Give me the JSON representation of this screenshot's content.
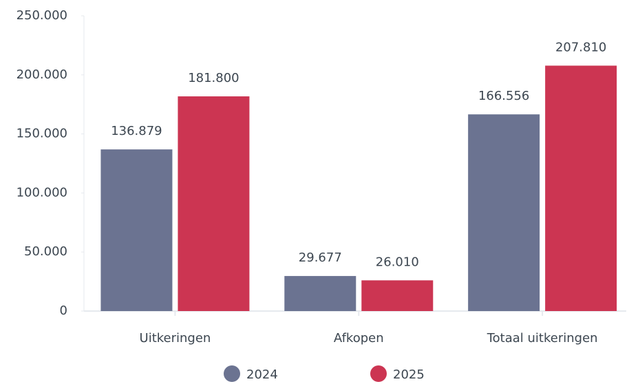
{
  "chart_data": {
    "type": "bar",
    "categories": [
      "Uitkeringen",
      "Afkopen",
      "Totaal uitkeringen"
    ],
    "series": [
      {
        "name": "2024",
        "color": "#6b7391",
        "values": [
          136879,
          29677,
          166556
        ],
        "value_labels": [
          "136.879",
          "29.677",
          "166.556"
        ]
      },
      {
        "name": "2025",
        "color": "#cc3552",
        "values": [
          181800,
          26010,
          207810
        ],
        "value_labels": [
          "181.800",
          "26.010",
          "207.810"
        ]
      }
    ],
    "ylim": [
      0,
      250000
    ],
    "yticks": [
      0,
      {
        "value": 50000,
        "label": "50.000"
      },
      {
        "value": 100000,
        "label": "100.000"
      },
      {
        "value": 150000,
        "label": "150.000"
      },
      {
        "value": 200000,
        "label": "200.000"
      },
      {
        "value": 250000,
        "label": "250.000"
      }
    ],
    "grid": false,
    "legend": "bottom"
  }
}
